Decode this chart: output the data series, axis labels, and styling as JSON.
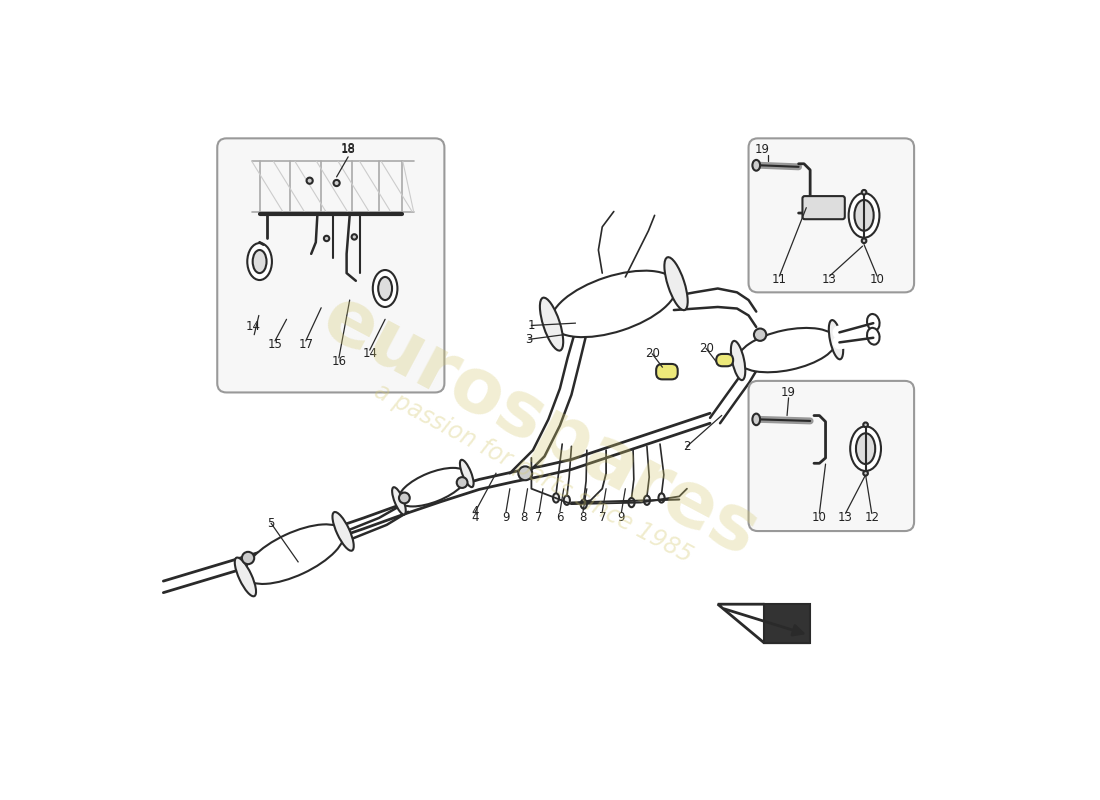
{
  "bg_color": "#ffffff",
  "lc": "#2a2a2a",
  "watermark1": "eurospares",
  "watermark2": "a passion for parts since 1985",
  "wm_color": "#d4c870",
  "inset_bg": "#f7f7f7",
  "inset_ec": "#999999"
}
